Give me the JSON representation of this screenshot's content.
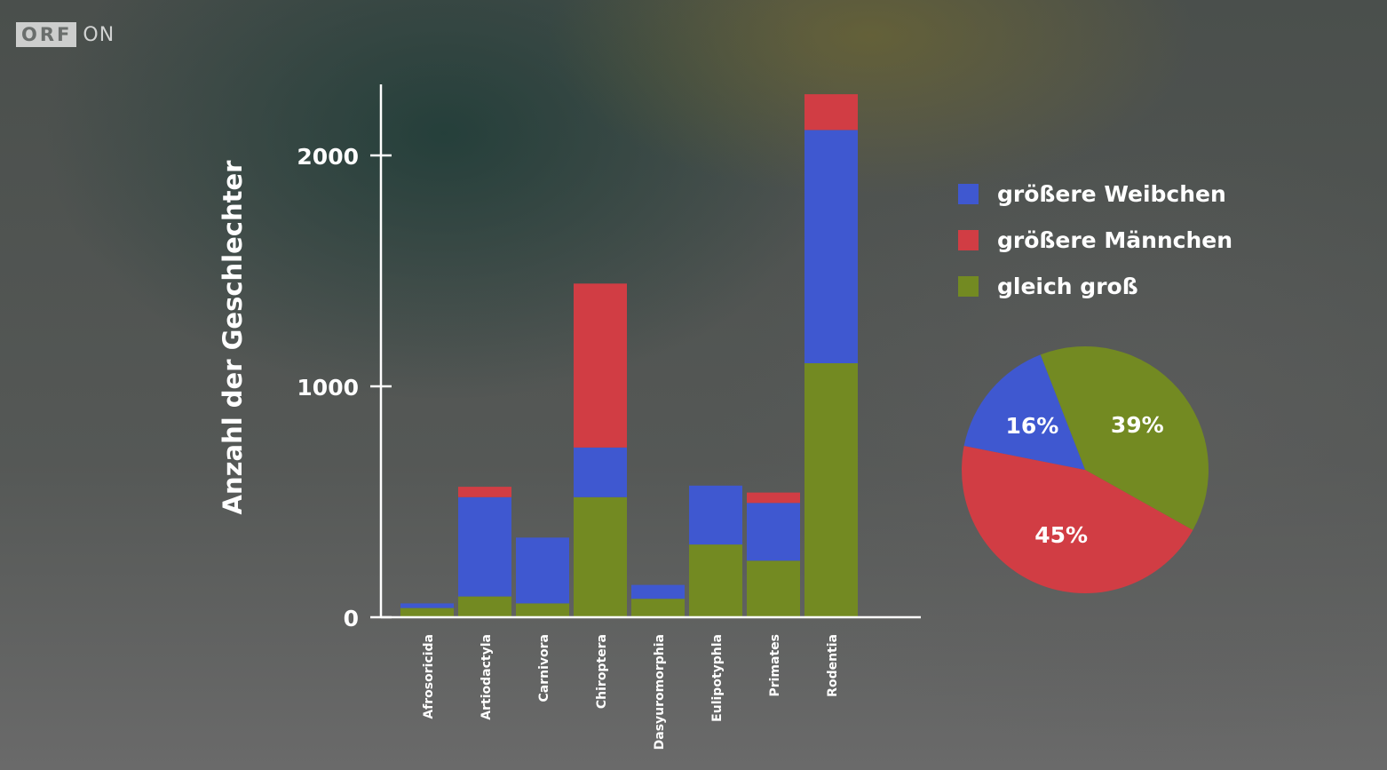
{
  "logo": {
    "brand": "ORF",
    "suffix": "ON"
  },
  "chart_data": [
    {
      "type": "bar",
      "stacked": true,
      "title": "",
      "xlabel": "",
      "ylabel": "Anzahl der Geschlechter",
      "ylim": [
        0,
        2300
      ],
      "yticks": [
        0,
        1000,
        2000
      ],
      "grid": false,
      "categories": [
        "Afrosoricida",
        "Artiodactyla",
        "Carnivora",
        "Chiroptera",
        "Dasyuromorphia",
        "Eulipotyphla",
        "Primates",
        "Rodentia"
      ],
      "series": [
        {
          "name": "gleich groß",
          "color": "#738a22",
          "values": [
            40,
            90,
            60,
            520,
            80,
            315,
            245,
            1100
          ]
        },
        {
          "name": "größere Weibchen",
          "color": "#3f58d0",
          "values": [
            20,
            430,
            285,
            215,
            60,
            255,
            250,
            1010
          ]
        },
        {
          "name": "größere Männchen",
          "color": "#d13d44",
          "values": [
            0,
            45,
            0,
            710,
            0,
            0,
            45,
            155
          ]
        }
      ],
      "legend": "right"
    },
    {
      "type": "pie",
      "slices": [
        {
          "label": "16%",
          "value": 16,
          "color": "#3f58d0"
        },
        {
          "label": "45%",
          "value": 45,
          "color": "#d13d44"
        },
        {
          "label": "39%",
          "value": 39,
          "color": "#738a22"
        }
      ]
    }
  ],
  "legend_items": [
    {
      "label": "größere Weibchen",
      "color": "#3f58d0"
    },
    {
      "label": "größere Männchen",
      "color": "#d13d44"
    },
    {
      "label": "gleich groß",
      "color": "#738a22"
    }
  ]
}
